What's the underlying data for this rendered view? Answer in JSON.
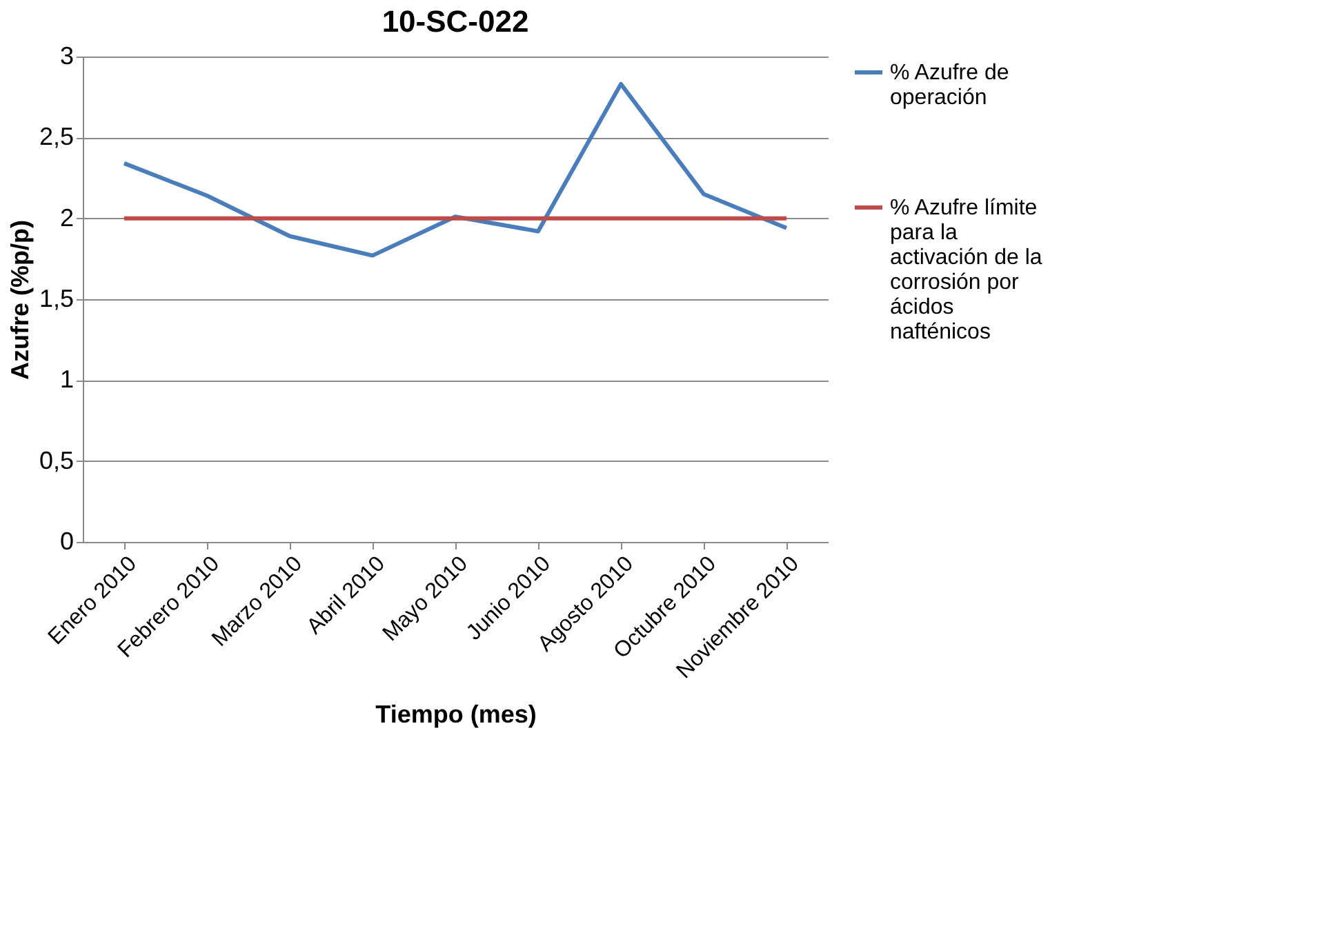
{
  "chart_data": {
    "type": "line",
    "title": "10-SC-022",
    "xlabel": "Tiempo (mes)",
    "ylabel": "Azufre (%p/p)",
    "categories": [
      "Enero 2010",
      "Febrero 2010",
      "Marzo 2010",
      "Abril 2010",
      "Mayo 2010",
      "Junio 2010",
      "Agosto 2010",
      "Octubre 2010",
      "Noviembre 2010"
    ],
    "series": [
      {
        "name": "% Azufre de operación",
        "color": "#4a7ebb",
        "values": [
          2.34,
          2.14,
          1.89,
          1.77,
          2.01,
          1.92,
          2.83,
          2.15,
          1.94
        ]
      },
      {
        "name": "% Azufre límite para la activación de la corrosión por ácidos nafténicos",
        "color": "#be4b48",
        "values": [
          2,
          2,
          2,
          2,
          2,
          2,
          2,
          2,
          2
        ]
      }
    ],
    "ylim": [
      0,
      3
    ],
    "yticks": [
      0,
      {
        "value": 0.5,
        "label": "0,5"
      },
      1,
      {
        "value": 1.5,
        "label": "1,5"
      },
      2,
      {
        "value": 2.5,
        "label": "2,5"
      },
      3
    ],
    "grid": "y",
    "legend": "right",
    "marker": "none",
    "line_style": "solid"
  }
}
